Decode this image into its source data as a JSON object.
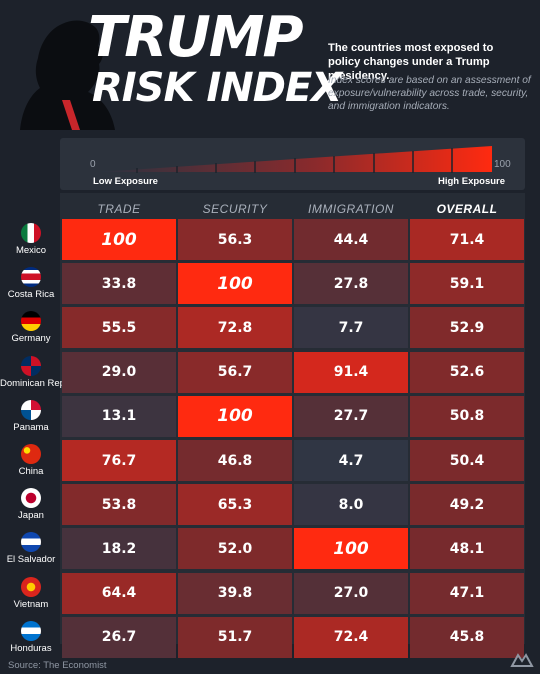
{
  "title_line1": "TRUMP",
  "title_line2": "RISK INDEX",
  "subtitle": "The countries most exposed to policy changes under a Trump presidency.",
  "note": "Index scores are based on an assessment of exposure/vulnerability across trade, security, and immigration indicators.",
  "legend": {
    "min_value": "0",
    "max_value": "100",
    "low_label": "Low Exposure",
    "high_label": "High Exposure"
  },
  "source": "Source: The Economist",
  "colors": {
    "background": "#1d222b",
    "low": "#283747",
    "mid": "#7a2a2c",
    "high": "#ff2a10"
  },
  "chart_data": {
    "type": "heatmap",
    "columns": [
      "TRADE",
      "SECURITY",
      "IMMIGRATION",
      "OVERALL"
    ],
    "rows": [
      {
        "country": "Mexico",
        "flag": "mexico-flag-icon",
        "values": [
          "100",
          "56.3",
          "44.4",
          "71.4"
        ]
      },
      {
        "country": "Costa Rica",
        "flag": "costa-rica-flag-icon",
        "values": [
          "33.8",
          "100",
          "27.8",
          "59.1"
        ]
      },
      {
        "country": "Germany",
        "flag": "germany-flag-icon",
        "values": [
          "55.5",
          "72.8",
          "7.7",
          "52.9"
        ]
      },
      {
        "country": "Dominican Rep.",
        "flag": "dominican-rep-flag-icon",
        "values": [
          "29.0",
          "56.7",
          "91.4",
          "52.6"
        ]
      },
      {
        "country": "Panama",
        "flag": "panama-flag-icon",
        "values": [
          "13.1",
          "100",
          "27.7",
          "50.8"
        ]
      },
      {
        "country": "China",
        "flag": "china-flag-icon",
        "values": [
          "76.7",
          "46.8",
          "4.7",
          "50.4"
        ]
      },
      {
        "country": "Japan",
        "flag": "japan-flag-icon",
        "values": [
          "53.8",
          "65.3",
          "8.0",
          "49.2"
        ]
      },
      {
        "country": "El Salvador",
        "flag": "el-salvador-flag-icon",
        "values": [
          "18.2",
          "52.0",
          "100",
          "48.1"
        ]
      },
      {
        "country": "Vietnam",
        "flag": "vietnam-flag-icon",
        "values": [
          "64.4",
          "39.8",
          "27.0",
          "47.1"
        ]
      },
      {
        "country": "Honduras",
        "flag": "honduras-flag-icon",
        "values": [
          "26.7",
          "51.7",
          "72.4",
          "45.8"
        ]
      }
    ],
    "scale": [
      0,
      100
    ]
  }
}
